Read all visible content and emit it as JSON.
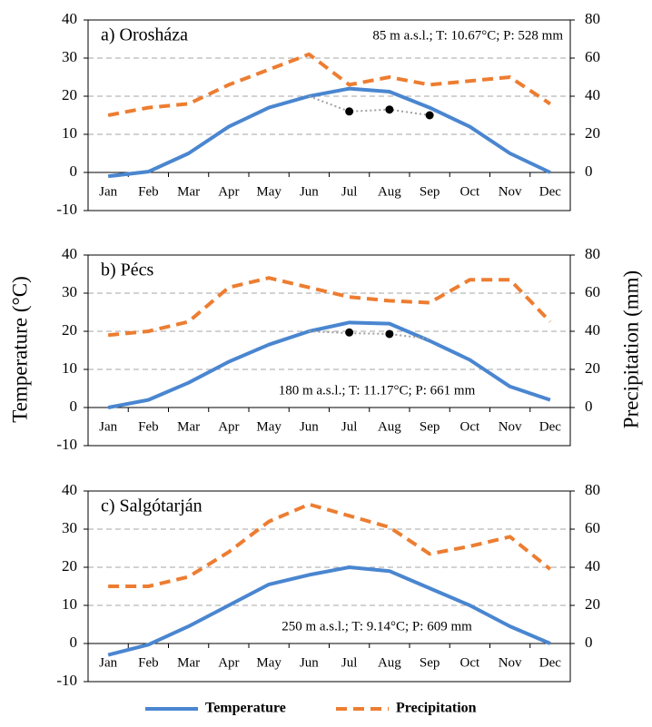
{
  "chart_data": [
    {
      "type": "line",
      "title": "a) Orosháza",
      "annotation": "85 m a.s.l.; T: 10.67°C; P: 528 mm",
      "ylabel": "Temperature (°C)",
      "y2label": "Precipitation (mm)",
      "categories": [
        "Jan",
        "Feb",
        "Mar",
        "Apr",
        "May",
        "Jun",
        "Jul",
        "Aug",
        "Sep",
        "Oct",
        "Nov",
        "Dec"
      ],
      "series": [
        {
          "name": "Temperature",
          "color": "#4a86d0",
          "style": "solid",
          "values": [
            -1,
            0.2,
            5,
            12,
            17,
            20,
            22,
            21.2,
            17,
            12,
            5,
            0
          ]
        },
        {
          "name": "Precipitation",
          "color": "#ed7d31",
          "style": "dashed",
          "axis": "y2",
          "values": [
            30,
            34,
            36,
            46,
            54,
            62,
            46,
            50,
            46,
            48,
            50,
            36
          ]
        },
        {
          "color": "#a0a0a0",
          "style": "dotted",
          "values": [
            null,
            null,
            null,
            null,
            null,
            20,
            16,
            16.5,
            15,
            null,
            null,
            null
          ]
        },
        {
          "color": "#000000",
          "style": "points",
          "values": [
            null,
            null,
            null,
            null,
            null,
            null,
            16,
            16.5,
            15,
            null,
            null,
            null
          ]
        }
      ],
      "ylim": [
        -10,
        40
      ],
      "yticks": [
        -10,
        0,
        10,
        20,
        30,
        40
      ],
      "y2lim": [
        -20,
        80
      ],
      "y2ticks": [
        0,
        20,
        40,
        60,
        80
      ],
      "grid": true
    },
    {
      "type": "line",
      "title": "b) Pécs",
      "annotation": "180 m a.s.l.; T: 11.17°C; P: 661 mm",
      "categories": [
        "Jan",
        "Feb",
        "Mar",
        "Apr",
        "May",
        "Jun",
        "Jul",
        "Aug",
        "Sep",
        "Oct",
        "Nov",
        "Dec"
      ],
      "series": [
        {
          "name": "Temperature",
          "color": "#4a86d0",
          "style": "solid",
          "values": [
            0,
            2,
            6.5,
            12,
            16.5,
            20,
            22.3,
            22,
            17.5,
            12.5,
            5.5,
            2
          ]
        },
        {
          "name": "Precipitation",
          "color": "#ed7d31",
          "style": "dashed",
          "axis": "y2",
          "values": [
            38,
            40,
            45,
            63,
            68,
            63,
            58,
            56,
            55,
            67,
            67,
            45
          ]
        },
        {
          "color": "#a0a0a0",
          "style": "dotted",
          "values": [
            null,
            null,
            null,
            null,
            null,
            20,
            19.5,
            19.3,
            18,
            null,
            null,
            null
          ]
        },
        {
          "color": "#000000",
          "style": "points",
          "values": [
            null,
            null,
            null,
            null,
            null,
            null,
            19.7,
            19.3,
            null,
            null,
            null,
            null
          ]
        }
      ],
      "ylim": [
        -10,
        40
      ],
      "yticks": [
        -10,
        0,
        10,
        20,
        30,
        40
      ],
      "y2lim": [
        -20,
        80
      ],
      "y2ticks": [
        0,
        20,
        40,
        60,
        80
      ],
      "grid": true
    },
    {
      "type": "line",
      "title": "c) Salgótarján",
      "annotation": "250 m a.s.l.; T: 9.14°C; P: 609 mm",
      "categories": [
        "Jan",
        "Feb",
        "Mar",
        "Apr",
        "May",
        "Jun",
        "Jul",
        "Aug",
        "Sep",
        "Oct",
        "Nov",
        "Dec"
      ],
      "series": [
        {
          "name": "Temperature",
          "color": "#4a86d0",
          "style": "solid",
          "values": [
            -3,
            -0.3,
            4.5,
            10,
            15.5,
            18,
            20,
            19,
            14.5,
            10,
            4.5,
            0
          ]
        },
        {
          "name": "Precipitation",
          "color": "#ed7d31",
          "style": "dashed",
          "axis": "y2",
          "values": [
            30,
            30,
            35,
            48,
            64,
            73,
            67,
            61,
            47,
            51,
            56,
            39
          ]
        }
      ],
      "ylim": [
        -10,
        40
      ],
      "yticks": [
        -10,
        0,
        10,
        20,
        30,
        40
      ],
      "y2lim": [
        -20,
        80
      ],
      "y2ticks": [
        0,
        20,
        40,
        60,
        80
      ],
      "grid": true
    }
  ]
}
